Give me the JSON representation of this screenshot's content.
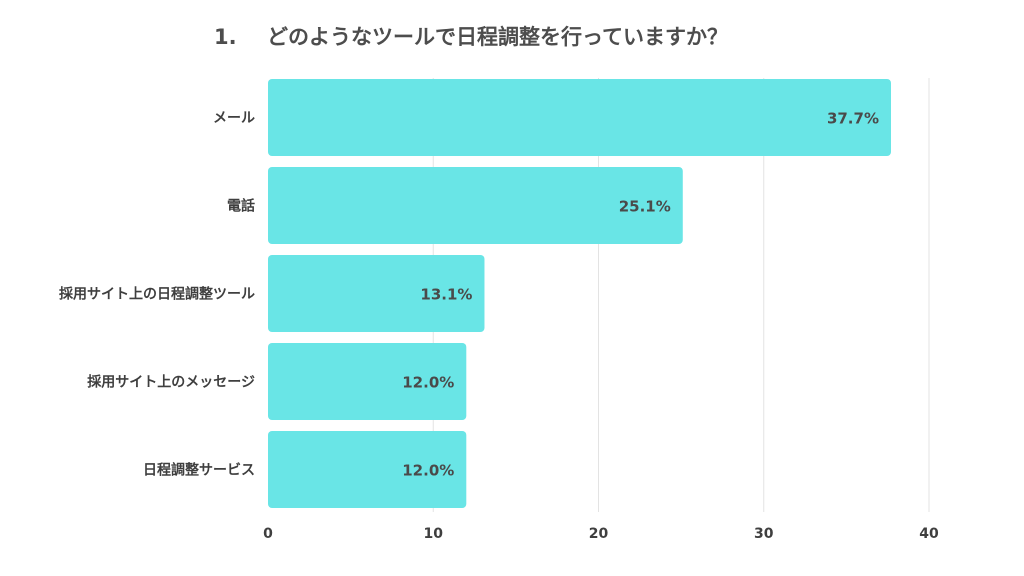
{
  "title": {
    "number": "1.",
    "text": "どのようなツールで日程調整を行っていますか？"
  },
  "colors": {
    "bar": "#69e5e6",
    "grid": "#e3e3e3",
    "text": "#4d4d4d"
  },
  "chart_data": {
    "type": "bar",
    "orientation": "horizontal",
    "categories": [
      "メール",
      "電話",
      "採用サイト上の日程調整ツール",
      "採用サイト上のメッセージ",
      "日程調整サービス"
    ],
    "values": [
      37.7,
      25.1,
      13.1,
      12.0,
      12.0
    ],
    "data_labels": [
      "37.7%",
      "25.1%",
      "13.1%",
      "12.0%",
      "12.0%"
    ],
    "xlim": [
      0,
      40
    ],
    "xticks": [
      0,
      10,
      20,
      30,
      40
    ],
    "grid": true,
    "legend": "none"
  }
}
